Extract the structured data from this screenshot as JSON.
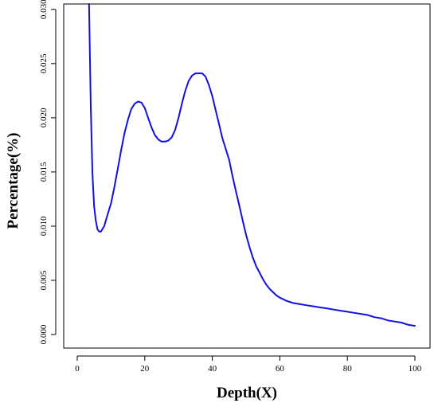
{
  "chart_data": {
    "type": "line",
    "title": "",
    "xlabel": "Depth(X)",
    "ylabel": "Percentage(%)",
    "xlim": [
      0,
      100
    ],
    "ylim": [
      0,
      0.0305
    ],
    "xticks": [
      0,
      20,
      40,
      60,
      80,
      100
    ],
    "yticks": [
      0.0,
      0.005,
      0.01,
      0.015,
      0.02,
      0.025,
      0.03
    ],
    "xtick_labels": [
      "0",
      "20",
      "40",
      "60",
      "80",
      "100"
    ],
    "ytick_labels": [
      "0.000",
      "0.005",
      "0.010",
      "0.015",
      "0.020",
      "0.025",
      "0.030"
    ],
    "grid": false,
    "line_color": "#1010e0",
    "series": [
      {
        "x": [
          3.5,
          4,
          4.5,
          5,
          5.5,
          6,
          6.5,
          7,
          8,
          9,
          10,
          11,
          12,
          13,
          14,
          15,
          16,
          17,
          18,
          19,
          20,
          21,
          22,
          23,
          24,
          25,
          26,
          27,
          28,
          29,
          30,
          31,
          32,
          33,
          34,
          35,
          36,
          37,
          38,
          39,
          40,
          41,
          42,
          43,
          44,
          45,
          46,
          47,
          48,
          49,
          50,
          51,
          52,
          53,
          54,
          55,
          56,
          57,
          58,
          59,
          60,
          62,
          64,
          66,
          68,
          70,
          72,
          74,
          76,
          78,
          80,
          82,
          84,
          86,
          88,
          90,
          92,
          94,
          96,
          98,
          100
        ],
        "y": [
          0.0305,
          0.021,
          0.0148,
          0.0118,
          0.0105,
          0.0097,
          0.0095,
          0.0095,
          0.01,
          0.0111,
          0.0121,
          0.0136,
          0.0153,
          0.017,
          0.0186,
          0.0198,
          0.0208,
          0.0213,
          0.0215,
          0.0214,
          0.0209,
          0.02,
          0.0191,
          0.0184,
          0.018,
          0.0178,
          0.0178,
          0.0179,
          0.0182,
          0.0189,
          0.02,
          0.0213,
          0.0225,
          0.0234,
          0.0239,
          0.0241,
          0.0241,
          0.0241,
          0.0238,
          0.023,
          0.022,
          0.0207,
          0.0194,
          0.0181,
          0.0171,
          0.0161,
          0.0146,
          0.0132,
          0.0119,
          0.0105,
          0.0092,
          0.0081,
          0.0071,
          0.0063,
          0.0057,
          0.0051,
          0.0046,
          0.0042,
          0.0039,
          0.0036,
          0.0034,
          0.0031,
          0.0029,
          0.0028,
          0.0027,
          0.0026,
          0.0025,
          0.0024,
          0.0023,
          0.0022,
          0.0021,
          0.002,
          0.0019,
          0.0018,
          0.0016,
          0.0015,
          0.0013,
          0.0012,
          0.0011,
          0.0009,
          0.0008
        ]
      }
    ]
  }
}
